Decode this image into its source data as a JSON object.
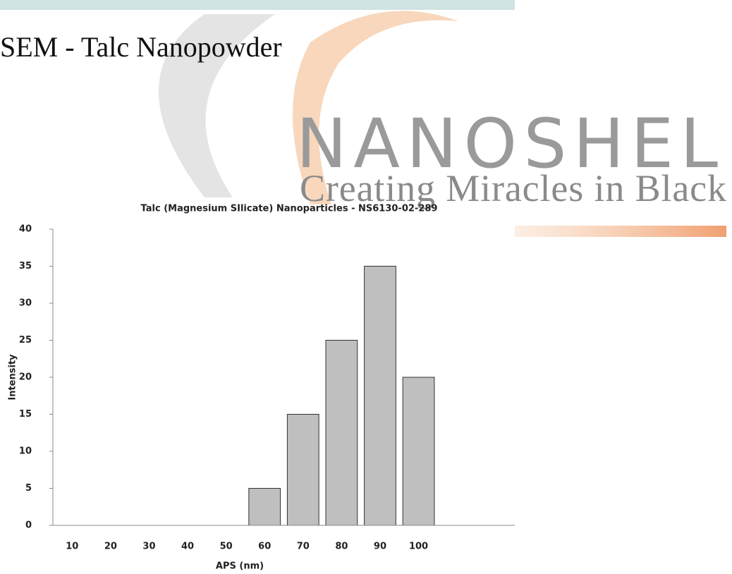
{
  "heading": "SEM - Talc Nanopowder",
  "watermark": {
    "brand": "NANOSHEL",
    "tagline": "Creating Miracles in Black"
  },
  "chart_data": {
    "type": "bar",
    "title": "Talc (Magnesium SIlicate) Nanoparticles - NS6130-02-289",
    "x_label": "APS (nm)",
    "y_label": "Intensity",
    "categories": [
      "10",
      "20",
      "30",
      "40",
      "50",
      "60",
      "70",
      "80",
      "90",
      "100",
      null,
      null
    ],
    "values": [
      0,
      0,
      0,
      0,
      0,
      5,
      15,
      25,
      35,
      20,
      null,
      null
    ],
    "color": "#bfbfbf",
    "ylim": [
      0,
      40
    ],
    "yticks": [
      0,
      5,
      10,
      15,
      20,
      25,
      30,
      35,
      40
    ],
    "grid": false
  }
}
